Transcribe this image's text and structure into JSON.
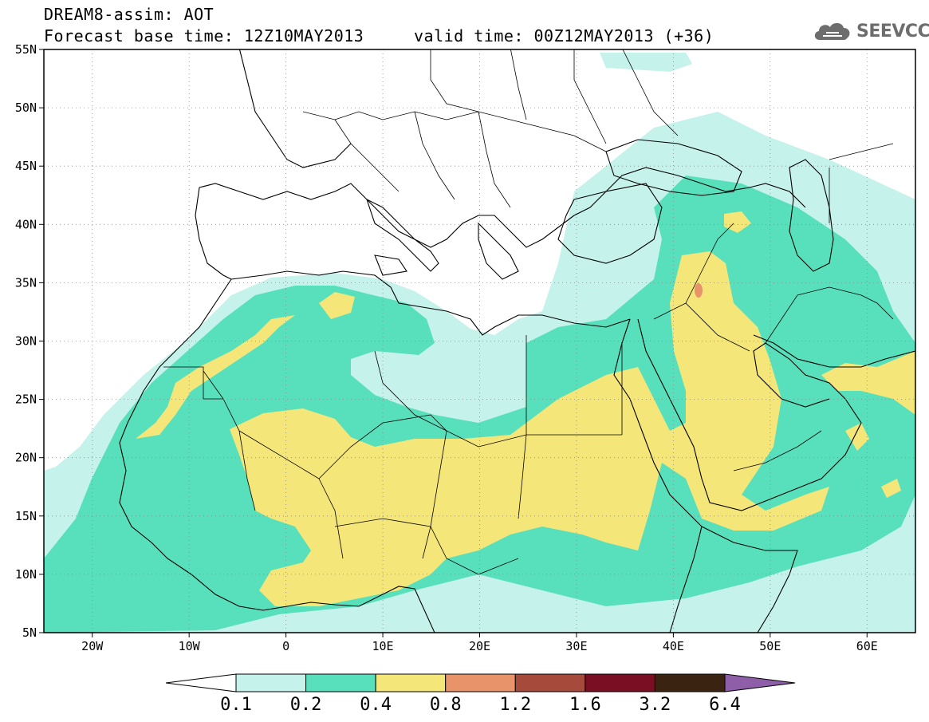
{
  "header": {
    "title": "DREAM8-assim: AOT",
    "subtitle": "Forecast base time: 12Z10MAY2013     valid time: 00Z12MAY2013 (+36)",
    "brand": "SEEVCCC",
    "brand_icon": "cloud-icon"
  },
  "map": {
    "lon_range": [
      -25,
      65
    ],
    "lat_range": [
      5,
      55
    ],
    "lat_ticks": [
      {
        "v": 55,
        "label": "55N"
      },
      {
        "v": 50,
        "label": "50N"
      },
      {
        "v": 45,
        "label": "45N"
      },
      {
        "v": 40,
        "label": "40N"
      },
      {
        "v": 35,
        "label": "35N"
      },
      {
        "v": 30,
        "label": "30N"
      },
      {
        "v": 25,
        "label": "25N"
      },
      {
        "v": 20,
        "label": "20N"
      },
      {
        "v": 15,
        "label": "15N"
      },
      {
        "v": 10,
        "label": "10N"
      },
      {
        "v": 5,
        "label": "5N"
      }
    ],
    "lon_ticks": [
      {
        "v": -20,
        "label": "20W"
      },
      {
        "v": -10,
        "label": "10W"
      },
      {
        "v": 0,
        "label": "0"
      },
      {
        "v": 10,
        "label": "10E"
      },
      {
        "v": 20,
        "label": "20E"
      },
      {
        "v": 30,
        "label": "30E"
      },
      {
        "v": 40,
        "label": "40E"
      },
      {
        "v": 50,
        "label": "50E"
      },
      {
        "v": 60,
        "label": "60E"
      }
    ],
    "grid": "dotted"
  },
  "legend": {
    "levels": [
      "0.1",
      "0.2",
      "0.4",
      "0.8",
      "1.2",
      "1.6",
      "3.2",
      "6.4"
    ],
    "colors": [
      "#ffffff",
      "#c6f2ec",
      "#58e0bc",
      "#f5e67a",
      "#e8936a",
      "#a64a3c",
      "#7a0f24",
      "#3b2312",
      "#8e5ea8"
    ]
  },
  "colors": {
    "c1": "#c6f2ec",
    "c2": "#58e0bc",
    "c3": "#f5e67a",
    "c4": "#e8936a"
  }
}
